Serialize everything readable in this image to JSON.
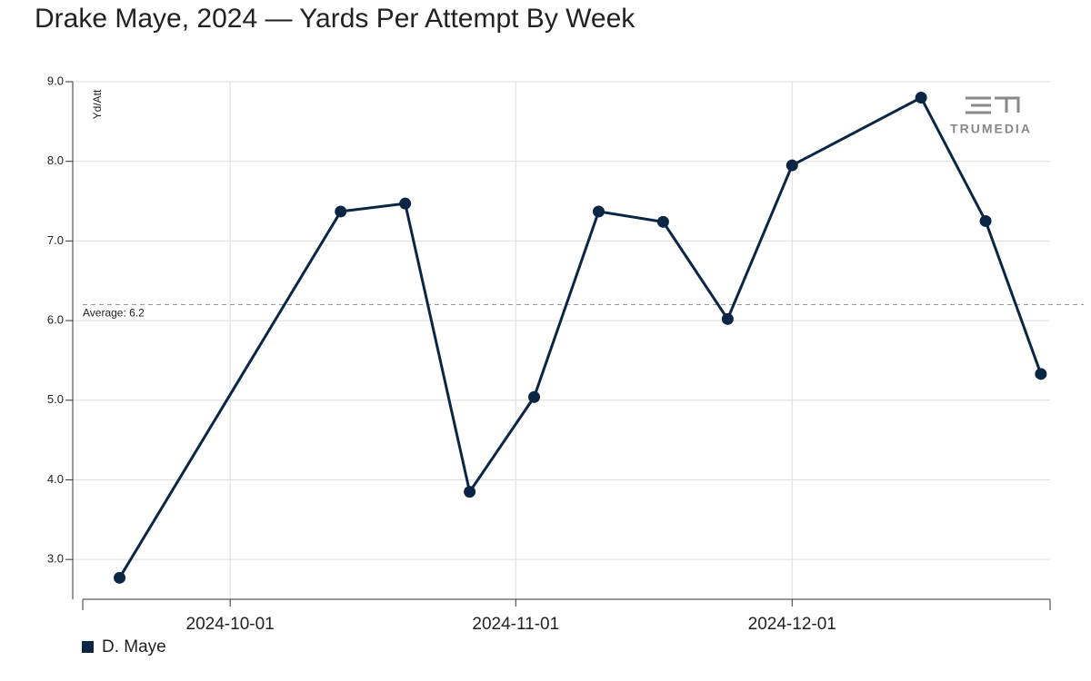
{
  "chart_data": {
    "type": "line",
    "title": "Drake Maye, 2024 — Yards Per Attempt By Week",
    "y_label": "Yd/Att",
    "watermark": "TRUMEDIA",
    "x": [
      "2024-09-19",
      "2024-10-13",
      "2024-10-20",
      "2024-10-27",
      "2024-11-03",
      "2024-11-10",
      "2024-11-17",
      "2024-11-24",
      "2024-12-01",
      "2024-12-15",
      "2024-12-22",
      "2024-12-28"
    ],
    "series": [
      {
        "name": "D. Maye",
        "color": "#0b2545",
        "values": [
          2.77,
          7.37,
          7.47,
          3.85,
          5.04,
          7.37,
          7.24,
          6.02,
          7.95,
          8.8,
          7.25,
          5.33
        ]
      }
    ],
    "average": {
      "value": 6.2,
      "label": "Average: 6.2"
    },
    "xlim": [
      "2024-09-15",
      "2024-12-29"
    ],
    "xticks": [
      "2024-10-01",
      "2024-11-01",
      "2024-12-01"
    ],
    "ylim": [
      2.5,
      9.0
    ],
    "yticks": [
      {
        "value": 3,
        "label": "3.0"
      },
      {
        "value": 4,
        "label": "4.0"
      },
      {
        "value": 5,
        "label": "5.0"
      },
      {
        "value": 6,
        "label": "6.0"
      },
      {
        "value": 7,
        "label": "7.0"
      },
      {
        "value": 8,
        "label": "8.0"
      },
      {
        "value": 9,
        "label": "9.0"
      }
    ],
    "grid": true
  }
}
